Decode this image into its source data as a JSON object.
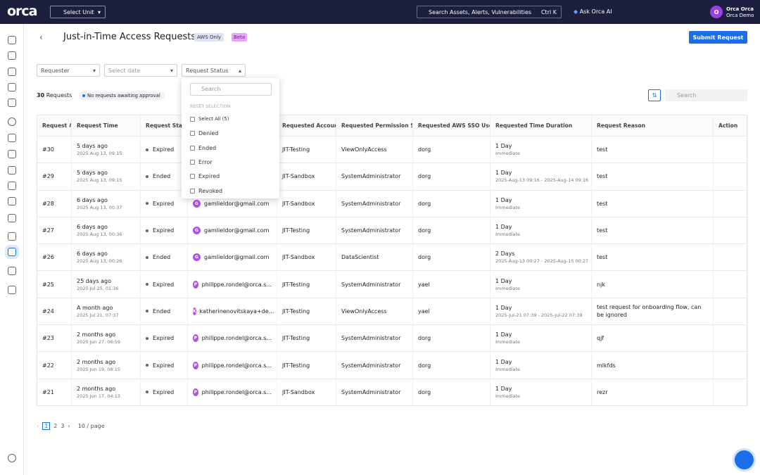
{
  "topbar": {
    "logo": "orca",
    "unit_select": "Select Unit",
    "search": "Search Assets, Alerts, Vulnerabilities",
    "shortcut": "Ctrl K",
    "ai": "Ask Orca AI",
    "avatar": "O",
    "user_name": "Orca Orca",
    "org": "Orca Demo"
  },
  "header": {
    "title": "Just-in-Time Access Requests",
    "badge": "AWS Only",
    "beta": "Beta",
    "submit": "Submit Request"
  },
  "filters": {
    "requester": "Requester",
    "date": "Select date",
    "status": "Request Status"
  },
  "summary": {
    "count": "30",
    "label": "Requests",
    "pending": "No requests awaiting approval",
    "search": "Search"
  },
  "dropdown": {
    "search": "Search",
    "reset": "RESET SELECTION",
    "options": [
      "Select All (5)",
      "Denied",
      "Ended",
      "Error",
      "Expired",
      "Revoked"
    ]
  },
  "table": {
    "columns": [
      "Request #",
      "Request Time",
      "Request Status",
      "Requested Account",
      "Requested Permission Set",
      "Requested AWS SSO User",
      "Requested Time Duration",
      "Request Reason",
      "Action"
    ],
    "rows": [
      {
        "id": "#30",
        "ago": "5 days ago",
        "time": "2025 Aug 13, 09:15",
        "status": "Expired",
        "account": "JIT-Testing",
        "permission": "ViewOnlyAccess",
        "user": "dorg",
        "duration": "1 Day",
        "window": "Immediate",
        "reason": "test"
      },
      {
        "id": "#29",
        "ago": "5 days ago",
        "time": "2025 Aug 13, 09:15",
        "status": "Ended",
        "account": "JIT-Sandbox",
        "permission": "SystemAdministrator",
        "user": "dorg",
        "duration": "1 Day",
        "window": "2025-Aug-13 09:16 - 2025-Aug-14 09:16",
        "reason": "test"
      },
      {
        "id": "#28",
        "ago": "6 days ago",
        "time": "2025 Aug 13, 00:37",
        "status": "Expired",
        "initial": "G",
        "requester": "gamlieldor@gmail.com",
        "account": "JIT-Sandbox",
        "permission": "SystemAdministrator",
        "user": "dorg",
        "duration": "1 Day",
        "window": "Immediate",
        "reason": "test"
      },
      {
        "id": "#27",
        "ago": "6 days ago",
        "time": "2025 Aug 13, 00:36",
        "status": "Expired",
        "initial": "G",
        "requester": "gamlieldor@gmail.com",
        "account": "JIT-Testing",
        "permission": "SystemAdministrator",
        "user": "dorg",
        "duration": "1 Day",
        "window": "Immediate",
        "reason": "test"
      },
      {
        "id": "#26",
        "ago": "6 days ago",
        "time": "2025 Aug 13, 00:26",
        "status": "Ended",
        "initial": "G",
        "requester": "gamlieldor@gmail.com",
        "account": "JIT-Sandbox",
        "permission": "DataScientist",
        "user": "dorg",
        "duration": "2 Days",
        "window": "2025-Aug-13 00:27 - 2025-Aug-15 00:27",
        "reason": "test"
      },
      {
        "id": "#25",
        "ago": "25 days ago",
        "time": "2025 Jul 25, 01:36",
        "status": "Expired",
        "initial": "P",
        "requester": "philippe.rondel@orca.s...",
        "account": "JIT-Testing",
        "permission": "SystemAdministrator",
        "user": "yael",
        "duration": "1 Day",
        "window": "Immediate",
        "reason": "njk"
      },
      {
        "id": "#24",
        "ago": "A month ago",
        "time": "2025 Jul 21, 07:37",
        "status": "Ended",
        "initial": "K",
        "requester": "katherinenovitskaya+de...",
        "account": "JIT-Testing",
        "permission": "ViewOnlyAccess",
        "user": "yael",
        "duration": "1 Day",
        "window": "2025-Jul-21 07:39 - 2025-Jul-22 07:39",
        "reason": "test request for onboarding flow, can be ignored"
      },
      {
        "id": "#23",
        "ago": "2 months ago",
        "time": "2025 Jun 27, 06:59",
        "status": "Expired",
        "initial": "P",
        "requester": "philippe.rondel@orca.s...",
        "account": "JIT-Testing",
        "permission": "SystemAdministrator",
        "user": "dorg",
        "duration": "1 Day",
        "window": "Immediate",
        "reason": "qjf"
      },
      {
        "id": "#22",
        "ago": "2 months ago",
        "time": "2025 Jun 19, 08:15",
        "status": "Expired",
        "initial": "P",
        "requester": "philippe.rondel@orca.s...",
        "account": "JIT-Testing",
        "permission": "SystemAdministrator",
        "user": "dorg",
        "duration": "1 Day",
        "window": "Immediate",
        "reason": "mlkfds"
      },
      {
        "id": "#21",
        "ago": "2 months ago",
        "time": "2025 Jun 17, 04:13",
        "status": "Expired",
        "initial": "P",
        "requester": "philippe.rondel@orca.s...",
        "account": "JIT-Sandbox",
        "permission": "SystemAdministrator",
        "user": "dorg",
        "duration": "1 Day",
        "window": "Immediate",
        "reason": "rezr"
      }
    ]
  },
  "pagination": {
    "pages": [
      "1",
      "2",
      "3"
    ],
    "size": "10 / page"
  }
}
